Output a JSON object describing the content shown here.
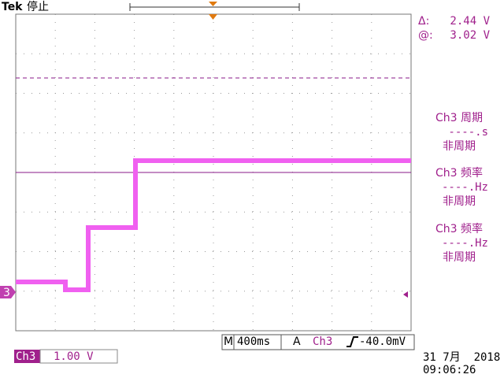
{
  "header": {
    "brand": "Tek",
    "status": "停止"
  },
  "cursor": {
    "delta_label": "Δ:",
    "delta_value": "2.44 V",
    "at_label": "@:",
    "at_value": "3.02 V"
  },
  "measurements": [
    {
      "source": "Ch3 周期",
      "value": "----.s",
      "state": "非周期"
    },
    {
      "source": "Ch3 频率",
      "value": "----.Hz",
      "state": "非周期"
    },
    {
      "source": "Ch3 频率",
      "value": "----.Hz",
      "state": "非周期"
    }
  ],
  "channel_marker": "3",
  "timebase": {
    "label": "M",
    "value": "400ms"
  },
  "trigger": {
    "label": "A",
    "source": "Ch3",
    "level": "-40.0mV"
  },
  "channel": {
    "name": "Ch3",
    "scale": "1.00 V"
  },
  "date": "31 7月  2018",
  "time": "09:06:26"
}
